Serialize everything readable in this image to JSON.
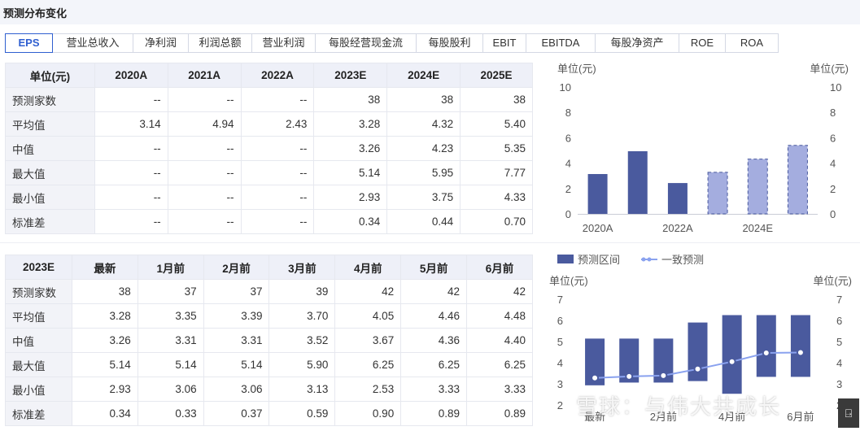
{
  "header": {
    "title": "预测分布变化"
  },
  "tabs": [
    {
      "label": "EPS",
      "active": true
    },
    {
      "label": "营业总收入"
    },
    {
      "label": "净利润"
    },
    {
      "label": "利润总额"
    },
    {
      "label": "营业利润"
    },
    {
      "label": "每股经营现金流"
    },
    {
      "label": "每股股利"
    },
    {
      "label": "EBIT"
    },
    {
      "label": "EBITDA"
    },
    {
      "label": "每股净资产"
    },
    {
      "label": "ROE"
    },
    {
      "label": "ROA"
    }
  ],
  "table1": {
    "header": [
      "单位(元)",
      "2020A",
      "2021A",
      "2022A",
      "2023E",
      "2024E",
      "2025E"
    ],
    "rows": [
      [
        "预测家数",
        "--",
        "--",
        "--",
        "38",
        "38",
        "38"
      ],
      [
        "平均值",
        "3.14",
        "4.94",
        "2.43",
        "3.28",
        "4.32",
        "5.40"
      ],
      [
        "中值",
        "--",
        "--",
        "--",
        "3.26",
        "4.23",
        "5.35"
      ],
      [
        "最大值",
        "--",
        "--",
        "--",
        "5.14",
        "5.95",
        "7.77"
      ],
      [
        "最小值",
        "--",
        "--",
        "--",
        "2.93",
        "3.75",
        "4.33"
      ],
      [
        "标准差",
        "--",
        "--",
        "--",
        "0.34",
        "0.44",
        "0.70"
      ]
    ]
  },
  "table2": {
    "header": [
      "2023E",
      "最新",
      "1月前",
      "2月前",
      "3月前",
      "4月前",
      "5月前",
      "6月前"
    ],
    "rows": [
      [
        "预测家数",
        "38",
        "37",
        "37",
        "39",
        "42",
        "42",
        "42"
      ],
      [
        "平均值",
        "3.28",
        "3.35",
        "3.39",
        "3.70",
        "4.05",
        "4.46",
        "4.48"
      ],
      [
        "中值",
        "3.26",
        "3.31",
        "3.31",
        "3.52",
        "3.67",
        "4.36",
        "4.40"
      ],
      [
        "最大值",
        "5.14",
        "5.14",
        "5.14",
        "5.90",
        "6.25",
        "6.25",
        "6.25"
      ],
      [
        "最小值",
        "2.93",
        "3.06",
        "3.06",
        "3.13",
        "2.53",
        "3.33",
        "3.33"
      ],
      [
        "标准差",
        "0.34",
        "0.33",
        "0.37",
        "0.59",
        "0.90",
        "0.89",
        "0.89"
      ]
    ]
  },
  "chart_data": [
    {
      "type": "bar",
      "unit_left": "单位(元)",
      "unit_right": "单位(元)",
      "categories": [
        "2020A",
        "2021A",
        "2022A",
        "2023E",
        "2024E",
        "2025E"
      ],
      "x_tick_labels": [
        "2020A",
        "2022A",
        "2024E"
      ],
      "values": [
        3.14,
        4.94,
        2.43,
        3.28,
        4.32,
        5.4
      ],
      "forecast_from_index": 3,
      "ylim": [
        0,
        10
      ],
      "yticks": [
        0,
        2,
        4,
        6,
        8,
        10
      ],
      "colors": {
        "actual": "#4a5a9e",
        "forecast": "#a4addf",
        "forecast_border": "#4a5a9e"
      }
    },
    {
      "type": "range_bar_line",
      "legend": [
        {
          "label": "预测区间",
          "kind": "bar"
        },
        {
          "label": "一致预测",
          "kind": "line"
        }
      ],
      "unit_left": "单位(元)",
      "unit_right": "单位(元)",
      "categories": [
        "最新",
        "1月前",
        "2月前",
        "3月前",
        "4月前",
        "5月前",
        "6月前"
      ],
      "x_tick_labels": [
        "最新",
        "2月前",
        "4月前",
        "6月前"
      ],
      "range_min": [
        2.93,
        3.06,
        3.06,
        3.13,
        2.53,
        3.33,
        3.33
      ],
      "range_max": [
        5.14,
        5.14,
        5.14,
        5.9,
        6.25,
        6.25,
        6.25
      ],
      "consensus": [
        3.28,
        3.35,
        3.39,
        3.7,
        4.05,
        4.46,
        4.48
      ],
      "ylim": [
        2,
        7
      ],
      "yticks": [
        2,
        3,
        4,
        5,
        6,
        7
      ],
      "colors": {
        "bar": "#4a5a9e",
        "line": "#8aa2ef"
      }
    }
  ],
  "watermark": "雪球：与伟大共成长",
  "corner_button": {
    "icon": "collapse-icon",
    "glyph": "⍈"
  }
}
